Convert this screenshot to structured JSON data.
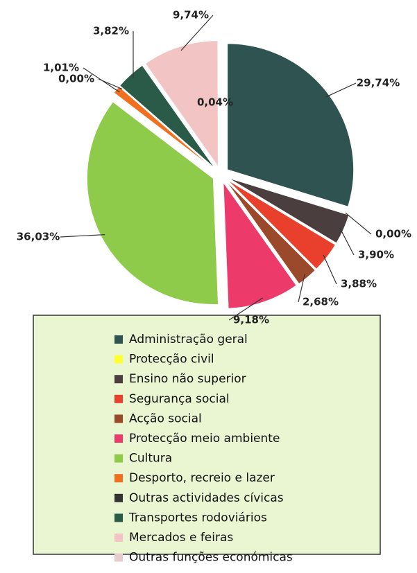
{
  "chart_data": {
    "type": "pie",
    "categories": [
      "Administração geral",
      "Protecção civil",
      "Ensino não superior",
      "Segurança social",
      "Acção social",
      "Protecção meio ambiente",
      "Cultura",
      "Desporto, recreio e lazer",
      "Outras actividades cívicas",
      "Transportes rodoviários",
      "Mercados e feiras",
      "Outras funções económicas"
    ],
    "values": [
      29.74,
      0.0,
      3.9,
      3.88,
      2.68,
      9.18,
      36.03,
      1.01,
      0.0,
      3.82,
      9.74,
      0.04
    ],
    "value_labels": [
      "29,74%",
      "0,00%",
      "3,90%",
      "3,88%",
      "2,68%",
      "9,18%",
      "36,03%",
      "1,01%",
      "0,00%",
      "3,82%",
      "9,74%",
      "0,04%"
    ],
    "colors": [
      "#2f5350",
      "#ffff33",
      "#4a3e3e",
      "#e8402c",
      "#9a4a2a",
      "#ec3a6a",
      "#8fcb4a",
      "#f07020",
      "#333333",
      "#2a5a48",
      "#f2c4c4",
      "#e6cccc"
    ],
    "legend": "bottom"
  }
}
